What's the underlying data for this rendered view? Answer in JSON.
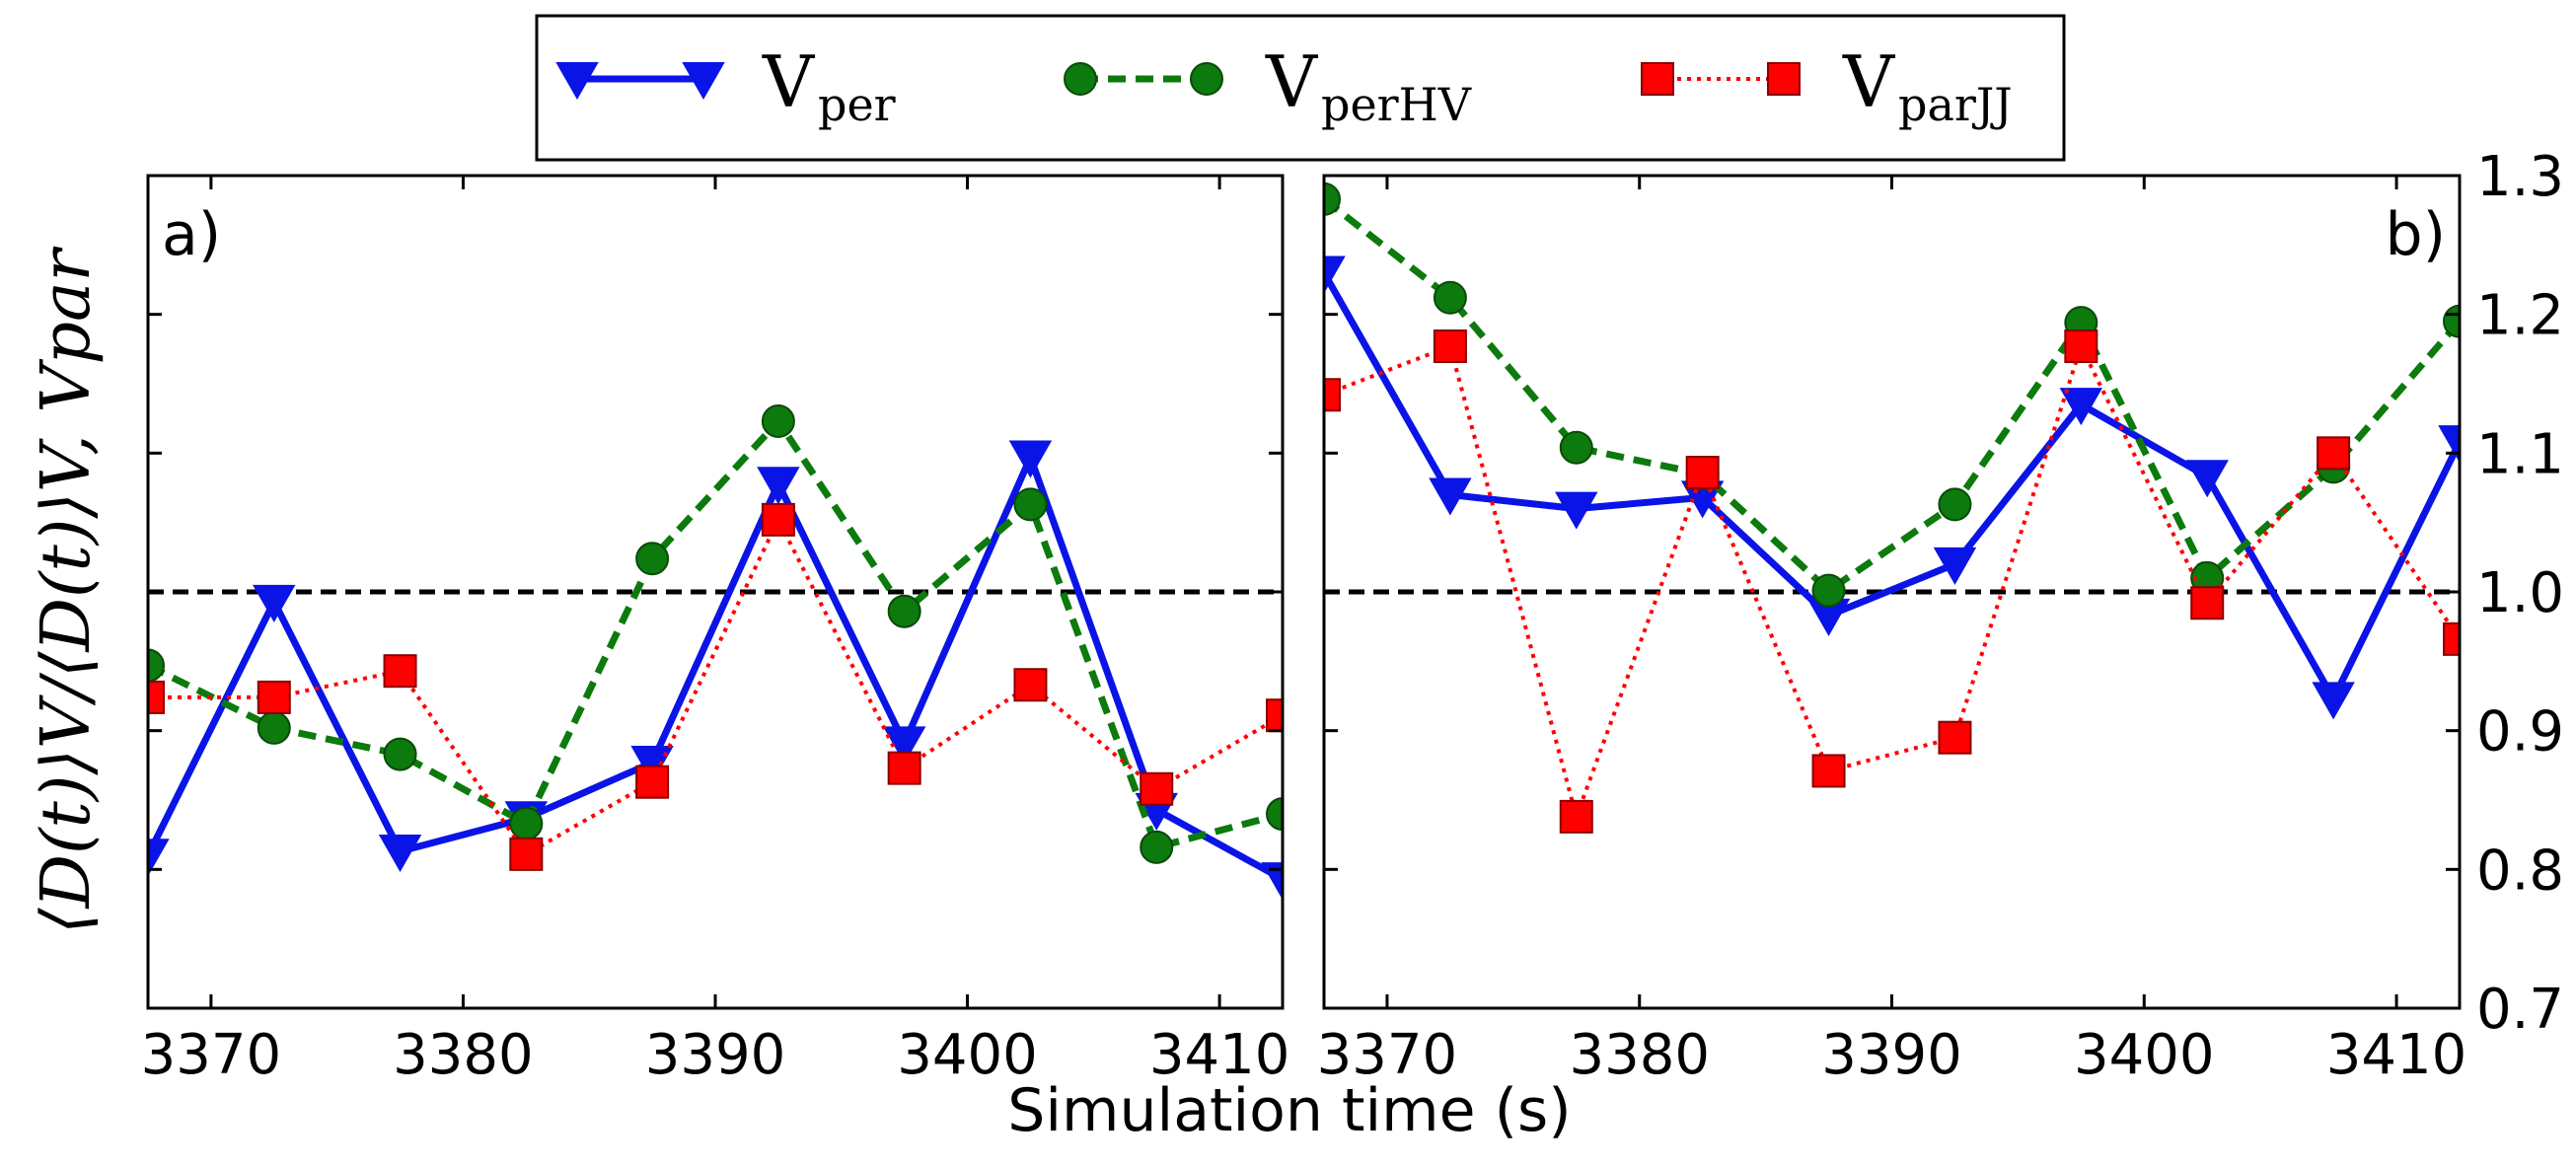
{
  "chart_data": {
    "type": "line",
    "xlabel": "Simulation time (s)",
    "ylabel": "⟨D(t)⟩V/⟨D(t)⟩V, Vpar",
    "ylim": [
      0.7,
      1.3
    ],
    "yticks": [
      "0.7",
      "0.8",
      "0.9",
      "1.0",
      "1.1",
      "1.2",
      "1.3"
    ],
    "xlim": [
      3367.5,
      3412.5
    ],
    "xticks": [
      "3370",
      "3380",
      "3390",
      "3400",
      "3410"
    ],
    "reference_line": 1.0,
    "legend": [
      {
        "main": "V",
        "sub": "per",
        "series": "V_per"
      },
      {
        "main": "V",
        "sub": "perHV",
        "series": "V_perHV"
      },
      {
        "main": "V",
        "sub": "parJJ",
        "series": "V_parJJ"
      }
    ],
    "colors": {
      "V_per": "#0a14e6",
      "V_perHV": "#0c7a0c",
      "V_parJJ": "#ff0000"
    },
    "x": [
      3367.5,
      3372.5,
      3377.5,
      3382.5,
      3387.5,
      3392.5,
      3397.5,
      3402.5,
      3407.5,
      3412.5
    ],
    "panels": [
      {
        "label": "a)",
        "series": [
          {
            "name": "V_per",
            "values": [
              0.81,
              0.993,
              0.813,
              0.837,
              0.877,
              1.078,
              0.891,
              1.097,
              0.843,
              0.793
            ]
          },
          {
            "name": "V_perHV",
            "values": [
              0.947,
              0.902,
              0.883,
              0.833,
              1.024,
              1.123,
              0.986,
              1.063,
              0.816,
              0.84
            ]
          },
          {
            "name": "V_parJJ",
            "values": [
              0.924,
              0.924,
              0.943,
              0.811,
              0.863,
              1.052,
              0.873,
              0.933,
              0.858,
              0.911
            ]
          }
        ]
      },
      {
        "label": "b)",
        "series": [
          {
            "name": "V_per",
            "values": [
              1.23,
              1.07,
              1.06,
              1.068,
              0.983,
              1.02,
              1.135,
              1.083,
              0.923,
              1.108
            ]
          },
          {
            "name": "V_perHV",
            "values": [
              1.283,
              1.212,
              1.104,
              1.085,
              1.001,
              1.063,
              1.194,
              1.01,
              1.09,
              1.195
            ]
          },
          {
            "name": "V_parJJ",
            "values": [
              1.142,
              1.177,
              0.838,
              1.086,
              0.871,
              0.895,
              1.177,
              0.992,
              1.1,
              0.966
            ]
          }
        ]
      }
    ]
  }
}
